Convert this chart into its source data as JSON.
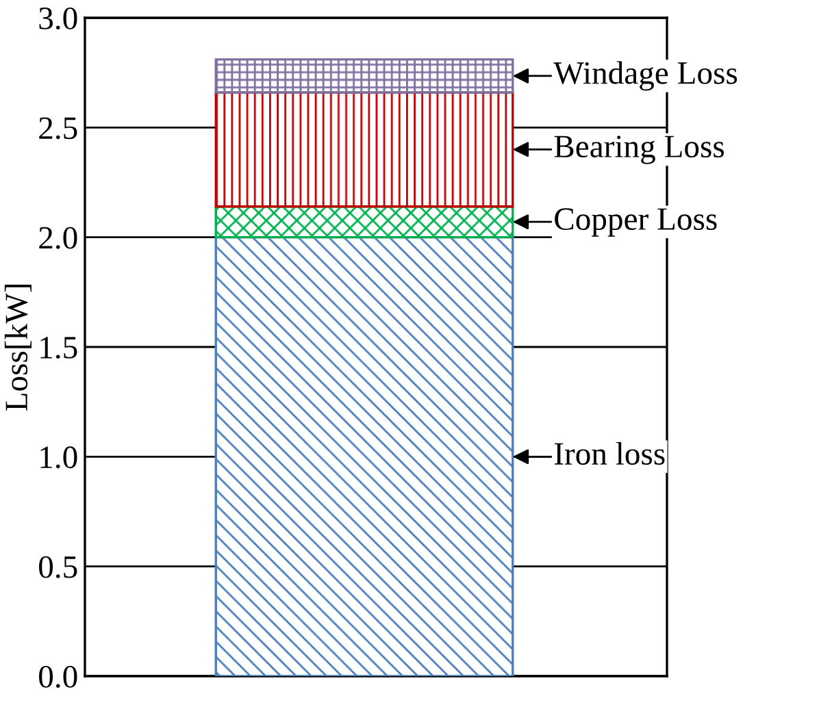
{
  "chart_data": {
    "type": "bar",
    "stacked": true,
    "categories": [
      null
    ],
    "ylabel": "Loss[kW]",
    "series": [
      {
        "color": "#4a7ebb",
        "values": [
          2.0
        ]
      },
      {
        "color": "#00b050",
        "values": [
          0.14
        ]
      },
      {
        "color": "#c00000",
        "values": [
          0.52
        ]
      },
      {
        "color": "#7f6fa0",
        "values": [
          0.15
        ]
      }
    ],
    "ylim": [
      0,
      3.0
    ],
    "yticks": [
      {
        "value": 0,
        "label": "0.0"
      },
      0.5,
      {
        "value": 1,
        "label": "1.0"
      },
      1.5,
      {
        "value": 2,
        "label": "2.0"
      },
      2.5,
      {
        "value": 3,
        "label": "3.0"
      }
    ],
    "grid": "y",
    "legend": false,
    "annotations": [
      "Windage Loss",
      "Bearing Loss",
      "Copper Loss",
      "Iron loss"
    ]
  }
}
